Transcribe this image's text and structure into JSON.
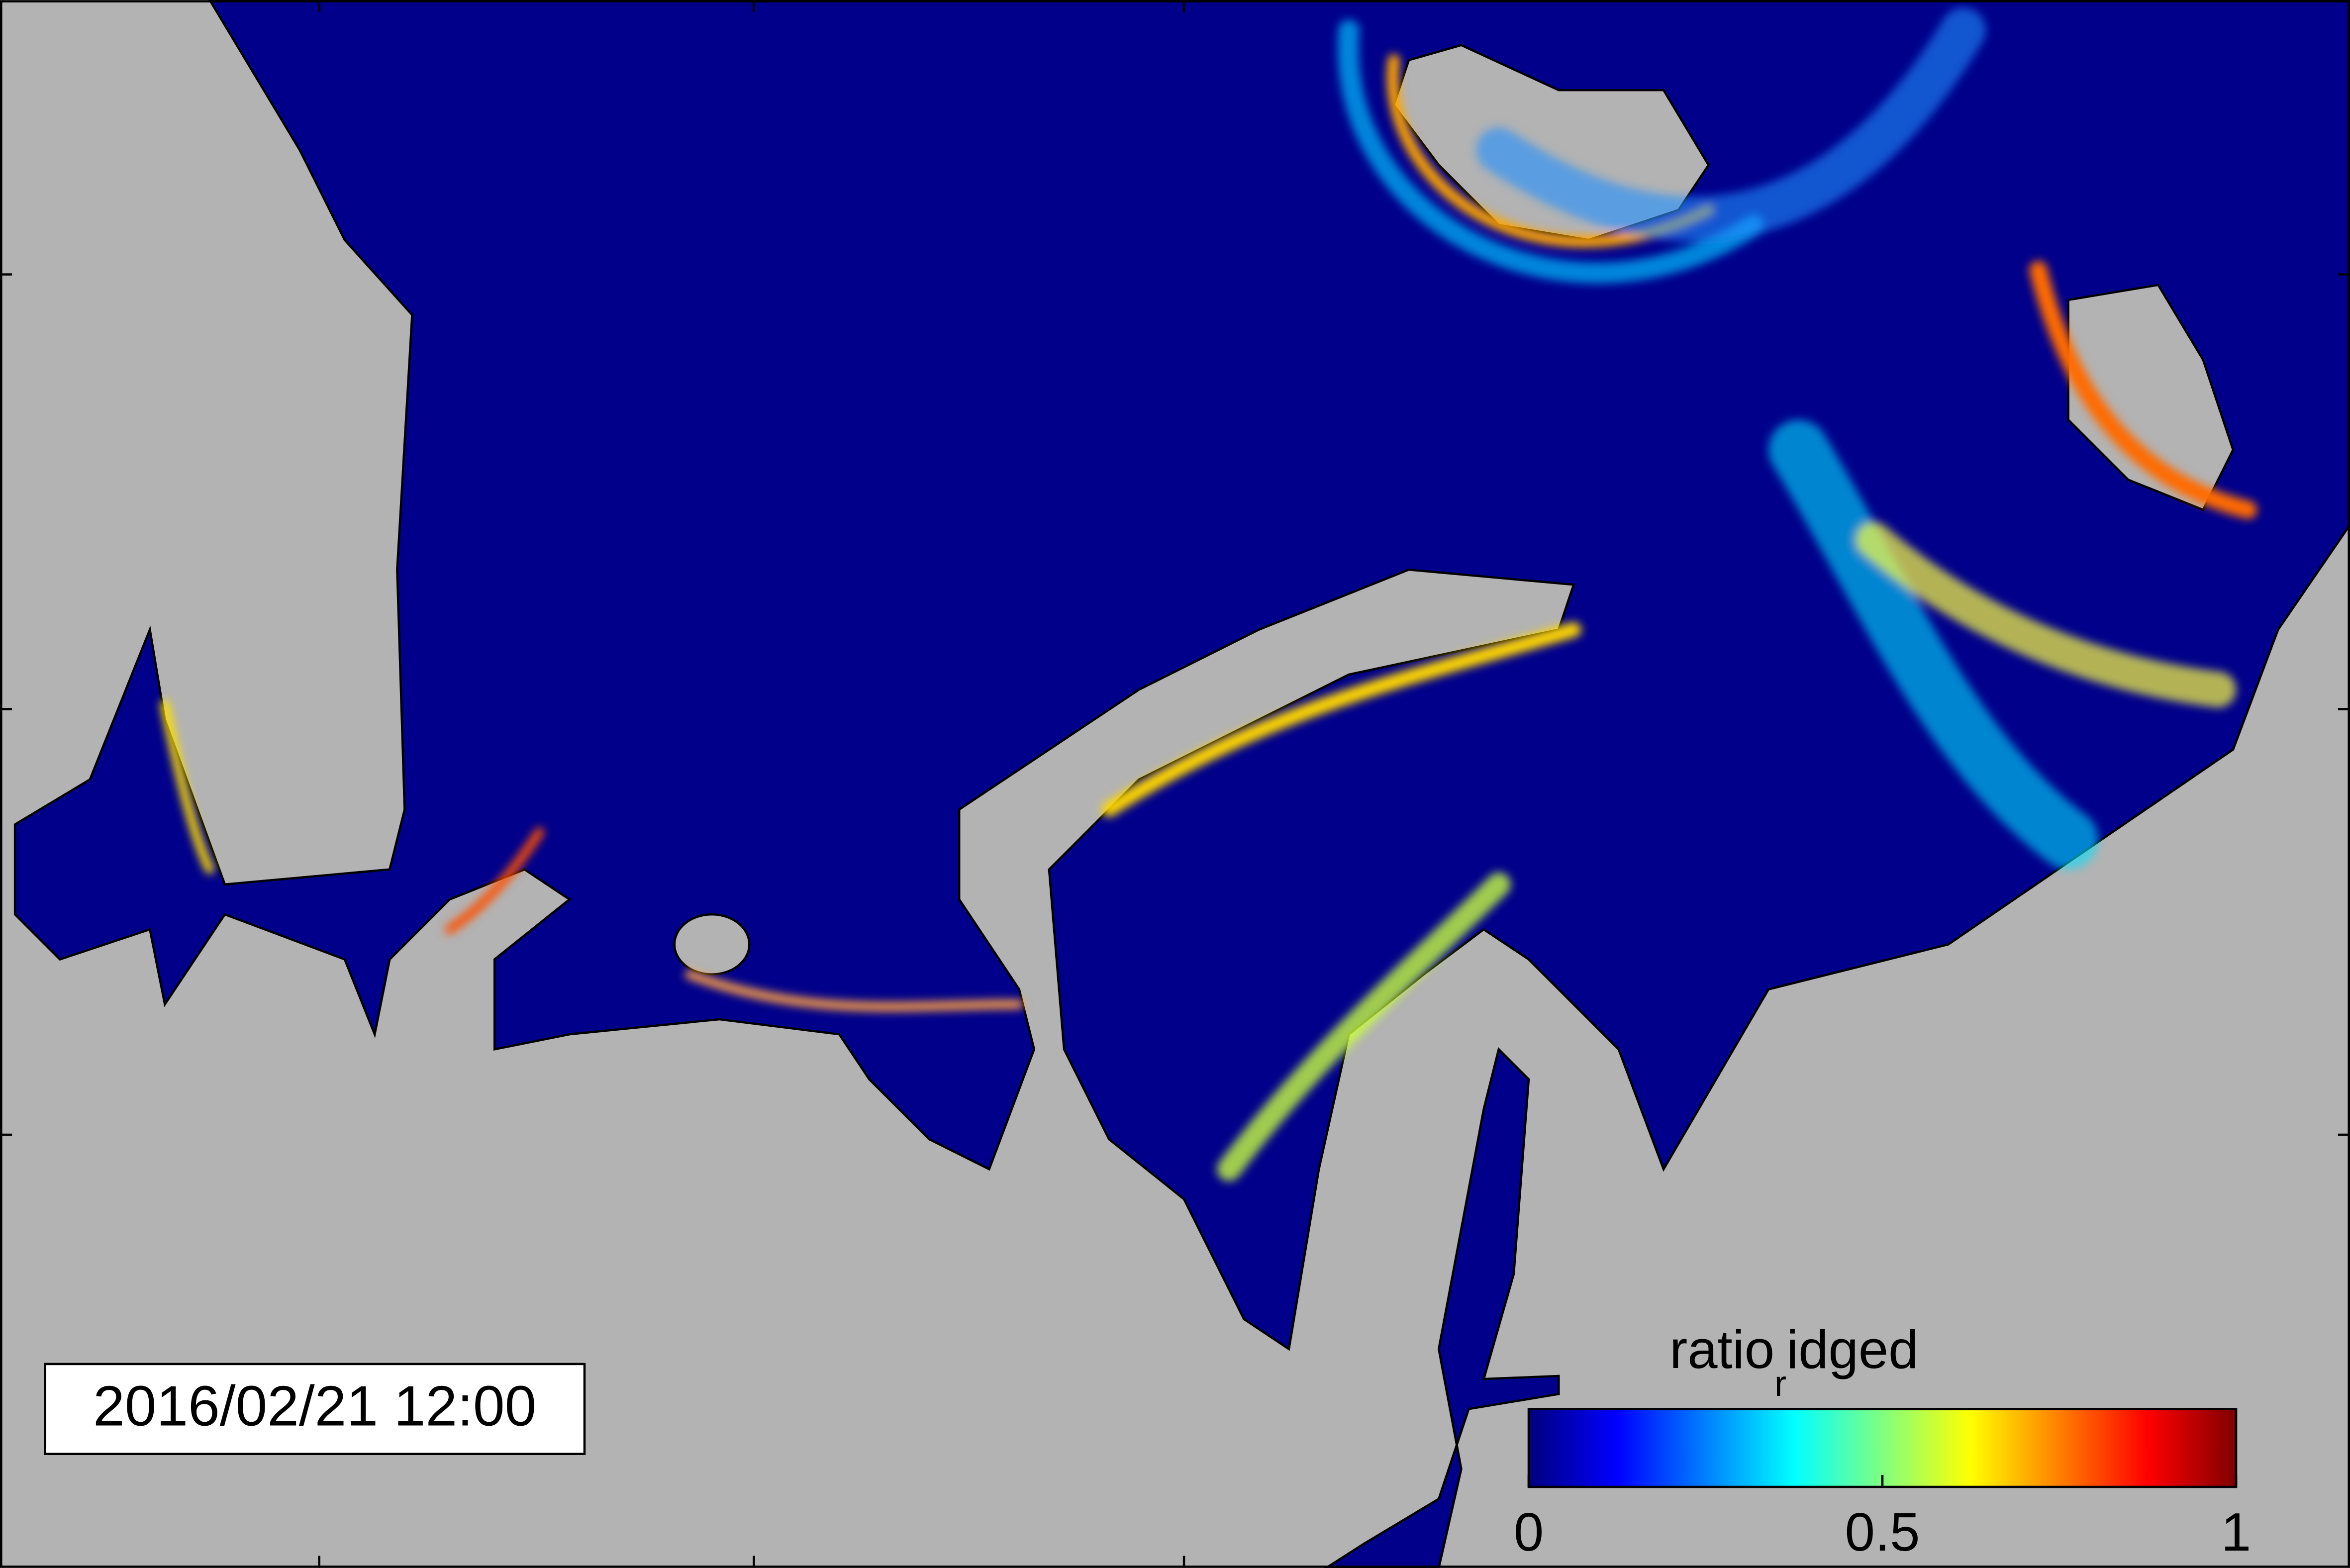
{
  "map": {
    "timestamp": "2016/02/21 12:00",
    "colorbar": {
      "label": {
        "main": "ratio",
        "sub": "r",
        "rest": "idged"
      },
      "lim": [
        0,
        1
      ],
      "ticks": [
        0,
        0.5,
        1
      ]
    }
  }
}
